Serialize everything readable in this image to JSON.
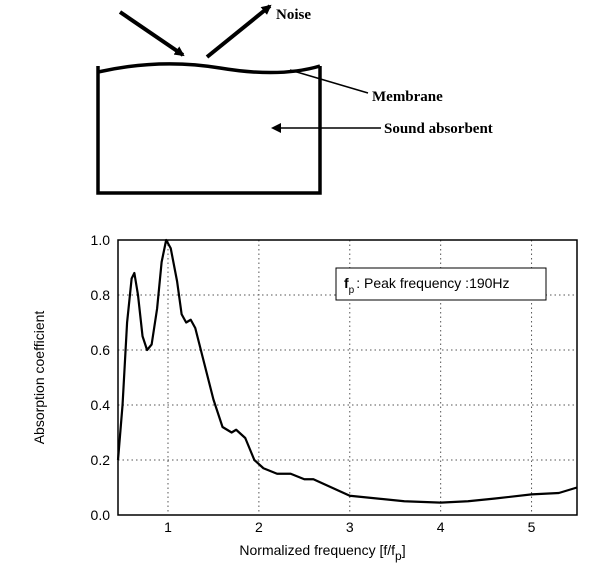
{
  "diagram": {
    "noise": "Noise",
    "membrane": "Membrane",
    "absorbent": "Sound absorbent"
  },
  "chart_data": {
    "type": "line",
    "ylabel": "Absorption coefficient",
    "xlabel": {
      "main": "Normalized frequency [f/f",
      "sub": "p",
      "end": "]"
    },
    "annotation": {
      "main": "f",
      "sub": "p",
      "text": ": Peak frequency :190Hz"
    },
    "color": "#000000",
    "grid": true,
    "x": [
      0.45,
      0.5,
      0.55,
      0.6,
      0.63,
      0.67,
      0.72,
      0.77,
      0.82,
      0.88,
      0.93,
      0.98,
      1.03,
      1.1,
      1.15,
      1.2,
      1.25,
      1.3,
      1.4,
      1.5,
      1.6,
      1.7,
      1.75,
      1.85,
      1.95,
      2.05,
      2.2,
      2.35,
      2.5,
      2.6,
      2.8,
      3.0,
      3.3,
      3.6,
      4.0,
      4.3,
      4.6,
      5.0,
      5.3,
      5.5
    ],
    "values": [
      0.2,
      0.4,
      0.7,
      0.86,
      0.88,
      0.8,
      0.65,
      0.6,
      0.62,
      0.75,
      0.92,
      1.0,
      0.97,
      0.85,
      0.73,
      0.7,
      0.71,
      0.68,
      0.55,
      0.42,
      0.32,
      0.3,
      0.31,
      0.28,
      0.2,
      0.17,
      0.15,
      0.15,
      0.13,
      0.13,
      0.1,
      0.07,
      0.06,
      0.05,
      0.045,
      0.05,
      0.06,
      0.075,
      0.08,
      0.1
    ],
    "xlim": [
      0.45,
      5.5
    ],
    "ylim": [
      0,
      1
    ],
    "xticks": [
      1,
      2,
      3,
      4,
      5
    ],
    "yticks": [
      {
        "value": 0,
        "label": "0.0"
      },
      0.2,
      0.4,
      0.6,
      0.8,
      {
        "value": 1,
        "label": "1.0"
      }
    ]
  }
}
